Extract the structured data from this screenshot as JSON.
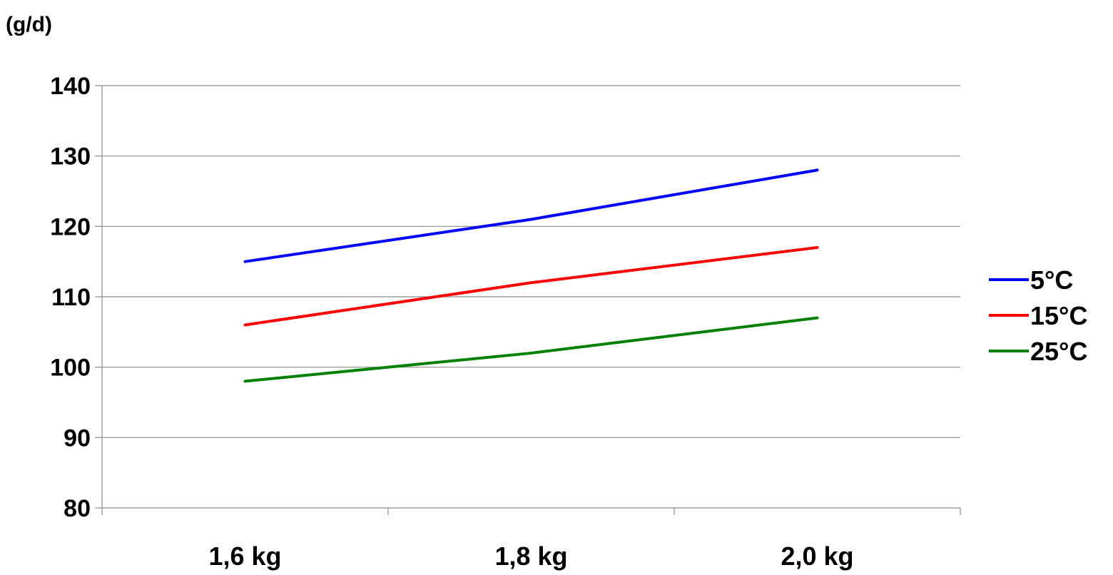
{
  "chart_data": {
    "type": "line",
    "title": "",
    "ylabel": "(g/d)",
    "xlabel": "",
    "categories": [
      "1,6 kg",
      "1,8 kg",
      "2,0 kg"
    ],
    "ylim": [
      80,
      140
    ],
    "yticks": [
      80,
      90,
      100,
      110,
      120,
      130,
      140
    ],
    "grid": true,
    "legend_position": "right",
    "series": [
      {
        "name": "5°C",
        "values": [
          115,
          121,
          128
        ],
        "color": "#0000ff"
      },
      {
        "name": "15°C",
        "values": [
          106,
          112,
          117
        ],
        "color": "#ff0000"
      },
      {
        "name": "25°C",
        "values": [
          98,
          102,
          107
        ],
        "color": "#008000"
      }
    ]
  }
}
